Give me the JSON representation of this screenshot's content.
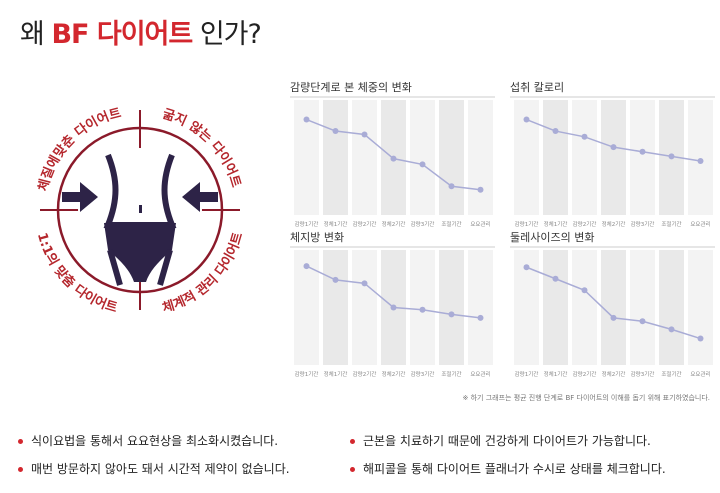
{
  "header": {
    "title_prefix": "왜",
    "title_brand": "BF 다이어트",
    "title_suffix": "인가?"
  },
  "diagram": {
    "labels": [
      "체질에맞춘 다이어트",
      "굶지 않는 다이어트",
      "1:1의 맞춤 다이어트",
      "체계적 관리 다이어트"
    ]
  },
  "chart_data": [
    {
      "type": "line",
      "title": "감량단계로 본 체중의 변화",
      "categories": [
        "감량1기간",
        "정체1기간",
        "감량2기간",
        "정체2기간",
        "감량3기간",
        "조절기간",
        "요요관리"
      ],
      "values": [
        83,
        73,
        70,
        49,
        44,
        25,
        22
      ],
      "ylim": [
        0,
        100
      ],
      "color": "#a9acd6"
    },
    {
      "type": "line",
      "title": "섭취 칼로리",
      "categories": [
        "감량1기간",
        "정체1기간",
        "감량2기간",
        "정체2기간",
        "감량3기간",
        "조절기간",
        "요요관리"
      ],
      "values": [
        83,
        73,
        68,
        59,
        55,
        51,
        47
      ],
      "ylim": [
        0,
        100
      ],
      "color": "#a9acd6"
    },
    {
      "type": "line",
      "title": "체지방 변화",
      "categories": [
        "감량1기간",
        "정체1기간",
        "감량2기간",
        "정체2기간",
        "감량3기간",
        "조절기간",
        "요요관리"
      ],
      "values": [
        86,
        74,
        71,
        50,
        48,
        44,
        41
      ],
      "ylim": [
        0,
        100
      ],
      "color": "#a9acd6"
    },
    {
      "type": "line",
      "title": "둘레사이즈의 변화",
      "categories": [
        "감량1기간",
        "정체1기간",
        "감량2기간",
        "정체2기간",
        "감량3기간",
        "조절기간",
        "요요관리"
      ],
      "values": [
        85,
        75,
        65,
        41,
        38,
        31,
        23
      ],
      "ylim": [
        0,
        100
      ],
      "color": "#a9acd6"
    }
  ],
  "note": "※ 하기 그래프는 평균 진행 단계로 BF 다이어트의 이해를 돕기 위해 표기하였습니다.",
  "bullets": [
    "식이요법을 통해서 요요현상을 최소화시켰습니다.",
    "근본을 치료하기 때문에 건강하게 다이어트가 가능합니다.",
    "매번 방문하지 않아도 돼서 시간적 제약이 없습니다.",
    "해피콜을 통해 다이어트 플래너가 수시로 상태를 체크합니다."
  ]
}
